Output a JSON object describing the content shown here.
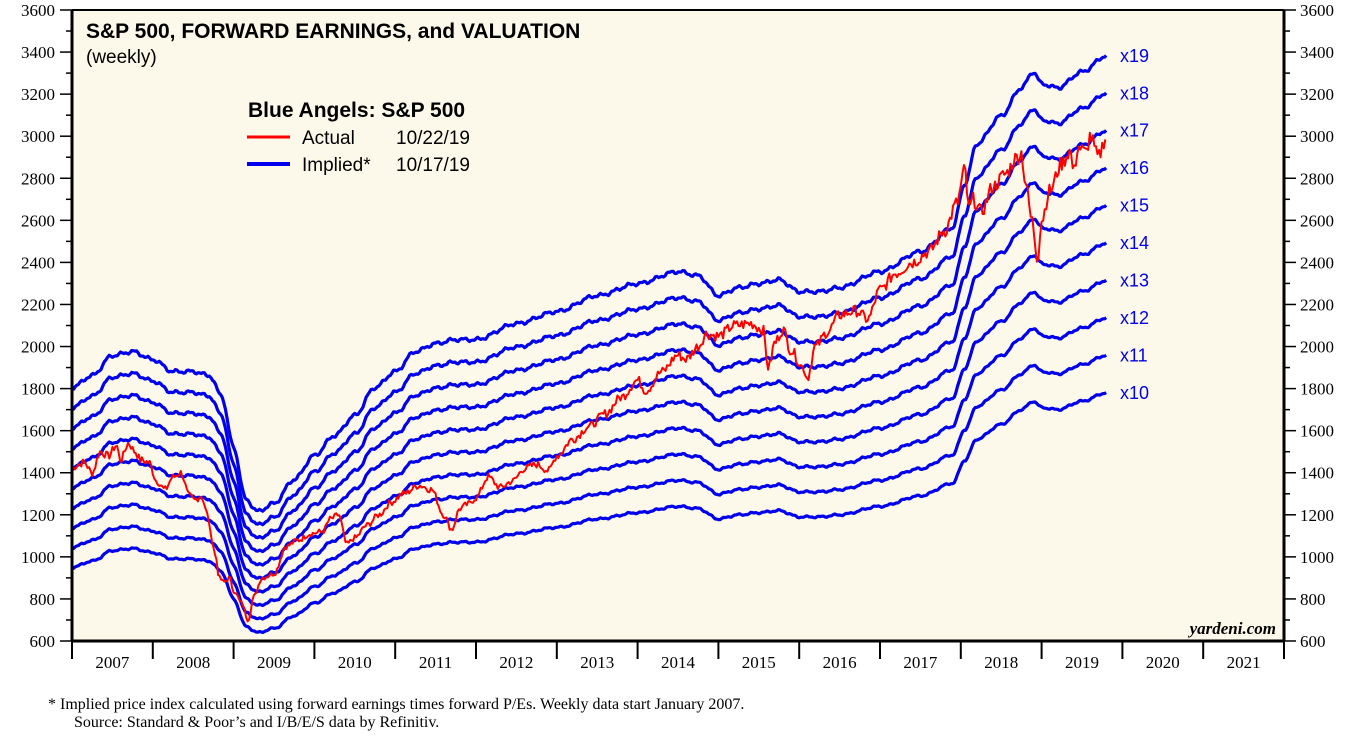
{
  "chart_data": {
    "type": "line",
    "title": "S&P 500, FORWARD EARNINGS, and VALUATION",
    "subtitle": "(weekly)",
    "xlabel": "",
    "ylabel": "",
    "ylim": [
      600,
      3600
    ],
    "xlim": [
      2007,
      2022
    ],
    "y_ticks": [
      600,
      800,
      1000,
      1200,
      1400,
      1600,
      1800,
      2000,
      2200,
      2400,
      2600,
      2800,
      3000,
      3200,
      3400,
      3600
    ],
    "x_tick_labels": [
      "2007",
      "2008",
      "2009",
      "2010",
      "2011",
      "2012",
      "2013",
      "2014",
      "2015",
      "2016",
      "2017",
      "2018",
      "2019",
      "2020",
      "2021"
    ],
    "grid": false,
    "legend": {
      "title": "Blue Angels: S&P 500",
      "placement": "top-left",
      "entries": [
        {
          "label": "Actual",
          "date": "10/22/19",
          "color": "#ff0000"
        },
        {
          "label": "Implied*",
          "date": "10/17/19",
          "color": "#0000ee"
        }
      ]
    },
    "forward_earnings_implied_base": {
      "x": [
        2007.0,
        2007.25,
        2007.5,
        2007.75,
        2008.0,
        2008.25,
        2008.5,
        2008.7,
        2008.85,
        2009.0,
        2009.15,
        2009.3,
        2009.5,
        2009.75,
        2010.0,
        2010.25,
        2010.5,
        2010.75,
        2011.0,
        2011.25,
        2011.5,
        2011.75,
        2012.0,
        2012.5,
        2013.0,
        2013.5,
        2014.0,
        2014.5,
        2014.75,
        2015.0,
        2015.25,
        2015.5,
        2015.75,
        2016.0,
        2016.25,
        2016.5,
        2017.0,
        2017.5,
        2017.9,
        2018.05,
        2018.2,
        2018.5,
        2018.75,
        2018.9,
        2019.0,
        2019.2,
        2019.5,
        2019.8
      ],
      "values": [
        95,
        98,
        103,
        104,
        102,
        99,
        99,
        98,
        93,
        80,
        67,
        64,
        66,
        72,
        78,
        83,
        88,
        95,
        99,
        104,
        106,
        107,
        107,
        111,
        114,
        118,
        121,
        124,
        123,
        118,
        120,
        121,
        122,
        119,
        119,
        120,
        124,
        129,
        135,
        146,
        156,
        163,
        170,
        174,
        171,
        170,
        174,
        178
      ]
    },
    "series": [
      {
        "name": "x10",
        "multiple": 10,
        "color": "#0000ee"
      },
      {
        "name": "x11",
        "multiple": 11,
        "color": "#0000ee"
      },
      {
        "name": "x12",
        "multiple": 12,
        "color": "#0000ee"
      },
      {
        "name": "x13",
        "multiple": 13,
        "color": "#0000ee"
      },
      {
        "name": "x14",
        "multiple": 14,
        "color": "#0000ee"
      },
      {
        "name": "x15",
        "multiple": 15,
        "color": "#0000ee"
      },
      {
        "name": "x16",
        "multiple": 16,
        "color": "#0000ee"
      },
      {
        "name": "x17",
        "multiple": 17,
        "color": "#0000ee"
      },
      {
        "name": "x18",
        "multiple": 18,
        "color": "#0000ee"
      },
      {
        "name": "x19",
        "multiple": 19,
        "color": "#0000ee"
      }
    ],
    "actual": {
      "name": "Actual",
      "color": "#ff0000",
      "x": [
        2007.0,
        2007.08,
        2007.15,
        2007.25,
        2007.35,
        2007.45,
        2007.55,
        2007.6,
        2007.7,
        2007.78,
        2007.85,
        2007.95,
        2008.05,
        2008.15,
        2008.25,
        2008.35,
        2008.45,
        2008.52,
        2008.6,
        2008.68,
        2008.72,
        2008.78,
        2008.82,
        2008.88,
        2008.95,
        2009.0,
        2009.1,
        2009.18,
        2009.25,
        2009.35,
        2009.5,
        2009.65,
        2009.8,
        2009.95,
        2010.1,
        2010.2,
        2010.3,
        2010.4,
        2010.5,
        2010.65,
        2010.8,
        2010.95,
        2011.1,
        2011.3,
        2011.45,
        2011.6,
        2011.7,
        2011.8,
        2011.9,
        2012.0,
        2012.15,
        2012.3,
        2012.45,
        2012.6,
        2012.75,
        2012.9,
        2013.0,
        2013.2,
        2013.4,
        2013.6,
        2013.8,
        2014.0,
        2014.1,
        2014.3,
        2014.5,
        2014.6,
        2014.75,
        2014.85,
        2015.0,
        2015.2,
        2015.4,
        2015.55,
        2015.62,
        2015.7,
        2015.8,
        2015.9,
        2016.05,
        2016.1,
        2016.2,
        2016.35,
        2016.5,
        2016.7,
        2016.85,
        2017.0,
        2017.2,
        2017.4,
        2017.6,
        2017.8,
        2017.95,
        2018.05,
        2018.1,
        2018.15,
        2018.25,
        2018.4,
        2018.55,
        2018.7,
        2018.75,
        2018.8,
        2018.88,
        2018.95,
        2019.0,
        2019.1,
        2019.25,
        2019.35,
        2019.4,
        2019.45,
        2019.55,
        2019.6,
        2019.7,
        2019.8
      ],
      "values": [
        1420,
        1440,
        1450,
        1400,
        1500,
        1480,
        1530,
        1460,
        1540,
        1500,
        1460,
        1450,
        1360,
        1320,
        1380,
        1400,
        1290,
        1270,
        1290,
        1200,
        1100,
        1000,
        900,
        880,
        900,
        840,
        780,
        700,
        810,
        900,
        920,
        1050,
        1080,
        1110,
        1120,
        1180,
        1200,
        1060,
        1090,
        1150,
        1200,
        1260,
        1300,
        1340,
        1320,
        1200,
        1130,
        1230,
        1250,
        1280,
        1380,
        1330,
        1360,
        1420,
        1440,
        1410,
        1480,
        1560,
        1620,
        1680,
        1760,
        1840,
        1790,
        1880,
        1960,
        1940,
        2000,
        2060,
        2050,
        2100,
        2110,
        2080,
        1900,
        2020,
        2080,
        1980,
        1900,
        1850,
        2000,
        2070,
        2150,
        2170,
        2130,
        2270,
        2350,
        2400,
        2450,
        2550,
        2680,
        2840,
        2650,
        2700,
        2640,
        2760,
        2820,
        2900,
        2920,
        2780,
        2600,
        2420,
        2600,
        2740,
        2870,
        2930,
        2830,
        2950,
        2920,
        3000,
        2900,
        3000
      ]
    },
    "band_labels": [
      "x19",
      "x18",
      "x17",
      "x16",
      "x15",
      "x14",
      "x13",
      "x12",
      "x11",
      "x10"
    ],
    "annotations": [
      "yardeni.com"
    ]
  },
  "footnote": {
    "line1": "*   Implied price index calculated using forward earnings times forward P/Es. Weekly data start January 2007.",
    "line2": "Source: Standard & Poor’s and I/B/E/S data by Refinitiv."
  },
  "colors": {
    "plot_background": "#fdf9ea",
    "implied": "#0000ee",
    "actual": "#ff0000"
  }
}
